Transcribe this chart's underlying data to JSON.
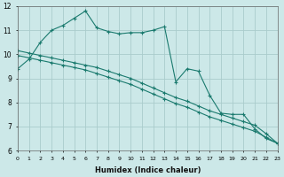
{
  "xlabel": "Humidex (Indice chaleur)",
  "ylabel": "",
  "background_color": "#cce8e8",
  "grid_color": "#aacccc",
  "line_color": "#1a7a6e",
  "ylim": [
    6,
    12
  ],
  "xlim": [
    0,
    23
  ],
  "yticks": [
    6,
    7,
    8,
    9,
    10,
    11,
    12
  ],
  "xticks": [
    0,
    1,
    2,
    3,
    4,
    5,
    6,
    7,
    8,
    9,
    10,
    11,
    12,
    13,
    14,
    15,
    16,
    17,
    18,
    19,
    20,
    21,
    22,
    23
  ],
  "series": [
    {
      "x": [
        0,
        1,
        2,
        3,
        4,
        5,
        6,
        7,
        8,
        9,
        10,
        11,
        12,
        13,
        14,
        15,
        16,
        17,
        18,
        19,
        20,
        21,
        22,
        23
      ],
      "y": [
        9.4,
        9.8,
        10.5,
        11.0,
        11.2,
        11.5,
        11.8,
        11.1,
        10.95,
        10.85,
        10.9,
        10.9,
        11.0,
        11.15,
        8.85,
        9.4,
        9.3,
        8.3,
        7.55,
        7.5,
        7.5,
        6.9,
        6.5,
        6.3
      ]
    },
    {
      "x": [
        0,
        1,
        2,
        3,
        4,
        5,
        6,
        7,
        8,
        9,
        10,
        11,
        12,
        13,
        14,
        15,
        16,
        17,
        18,
        19,
        20,
        21,
        22,
        23
      ],
      "y": [
        10.15,
        10.05,
        9.95,
        9.85,
        9.75,
        9.65,
        9.55,
        9.45,
        9.3,
        9.15,
        9.0,
        8.8,
        8.6,
        8.4,
        8.2,
        8.05,
        7.85,
        7.65,
        7.5,
        7.35,
        7.2,
        7.05,
        6.7,
        6.3
      ]
    },
    {
      "x": [
        0,
        1,
        2,
        3,
        4,
        5,
        6,
        7,
        8,
        9,
        10,
        11,
        12,
        13,
        14,
        15,
        16,
        17,
        18,
        19,
        20,
        21,
        22,
        23
      ],
      "y": [
        9.95,
        9.85,
        9.75,
        9.65,
        9.55,
        9.45,
        9.35,
        9.2,
        9.05,
        8.9,
        8.75,
        8.55,
        8.35,
        8.15,
        7.95,
        7.8,
        7.6,
        7.4,
        7.25,
        7.1,
        6.95,
        6.8,
        6.55,
        6.3
      ]
    }
  ]
}
